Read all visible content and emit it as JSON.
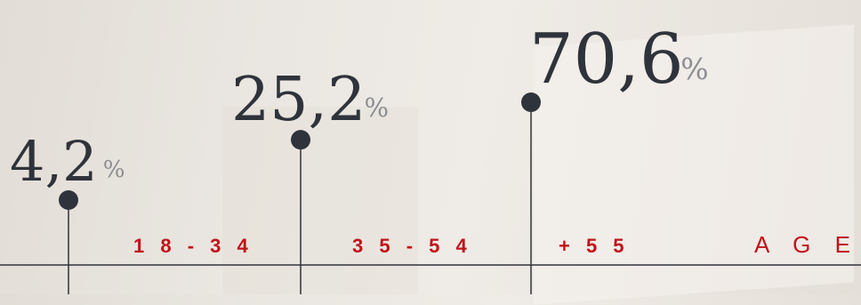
{
  "chart_data": {
    "type": "lollipop",
    "categories": [
      "18-34",
      "35-54",
      "+55"
    ],
    "category_labels": [
      "1 8 - 3 4",
      "3 5 - 5 4",
      "+ 5 5"
    ],
    "values": [
      4.2,
      25.2,
      70.6
    ],
    "value_labels": [
      "4,2",
      "25,2",
      "70,6"
    ],
    "unit": "%",
    "xlabel": "A G E",
    "colors": {
      "stem": "#2f333b",
      "dot": "#2f333b",
      "category": "#c0131b",
      "value": "#2f333b",
      "unit": "#8b8d92"
    }
  }
}
